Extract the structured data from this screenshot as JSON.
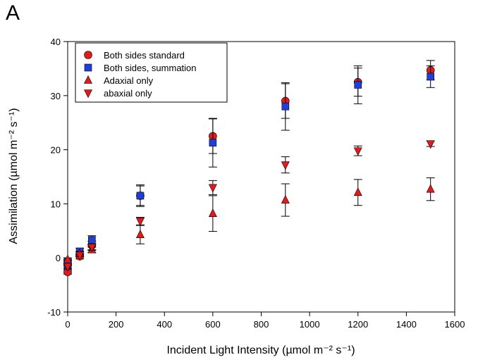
{
  "panel_label": "A",
  "chart_data": {
    "type": "scatter",
    "xlabel": "Incident Light Intensity (µmol m⁻² s⁻¹)",
    "ylabel": "Assimilation (µmol m⁻² s⁻¹)",
    "xlim": [
      0,
      1600
    ],
    "ylim": [
      -10,
      40
    ],
    "xticks": [
      0,
      200,
      400,
      600,
      800,
      1000,
      1200,
      1400,
      1600
    ],
    "yticks": [
      -10,
      0,
      10,
      20,
      30,
      40
    ],
    "legend_position": "top-left",
    "grid": false,
    "series": [
      {
        "name": "Both sides standard",
        "marker": "circle",
        "color": "#e31a1c",
        "x": [
          0,
          0,
          50,
          100,
          300,
          600,
          900,
          1200,
          1500
        ],
        "y": [
          -2.6,
          -1.0,
          0.3,
          2.3,
          11.5,
          22.5,
          29.0,
          32.5,
          34.7
        ],
        "err": [
          0.4,
          0.5,
          0.5,
          0.8,
          1.8,
          3.2,
          3.2,
          2.6,
          1.8
        ]
      },
      {
        "name": "Both sides, summation",
        "marker": "square",
        "color": "#1f3fd6",
        "x": [
          0,
          0,
          50,
          100,
          300,
          600,
          900,
          1200,
          1500
        ],
        "y": [
          -1.5,
          -0.7,
          1.2,
          3.3,
          11.5,
          21.3,
          28.0,
          32.0,
          33.5
        ],
        "err": [
          0.4,
          0.4,
          0.6,
          0.8,
          2.0,
          4.5,
          4.4,
          3.5,
          2.0
        ]
      },
      {
        "name": "Adaxial only",
        "marker": "triangle-up",
        "color": "#e31a1c",
        "x": [
          0,
          50,
          100,
          300,
          600,
          900,
          1200,
          1500
        ],
        "y": [
          -0.3,
          0.8,
          1.5,
          4.3,
          8.2,
          10.7,
          12.1,
          12.7
        ],
        "err": [
          0.3,
          0.4,
          0.5,
          1.7,
          3.3,
          3.0,
          2.4,
          2.1
        ]
      },
      {
        "name": "abaxial only",
        "marker": "triangle-down",
        "color": "#e31a1c",
        "x": [
          0,
          50,
          100,
          300,
          600,
          900,
          1200,
          1500
        ],
        "y": [
          -1.6,
          0.5,
          2.0,
          6.8,
          13.0,
          17.2,
          19.8,
          21.1
        ],
        "err": [
          0.3,
          0.3,
          0.6,
          0.7,
          1.3,
          1.5,
          0.9,
          0.5
        ]
      }
    ]
  }
}
